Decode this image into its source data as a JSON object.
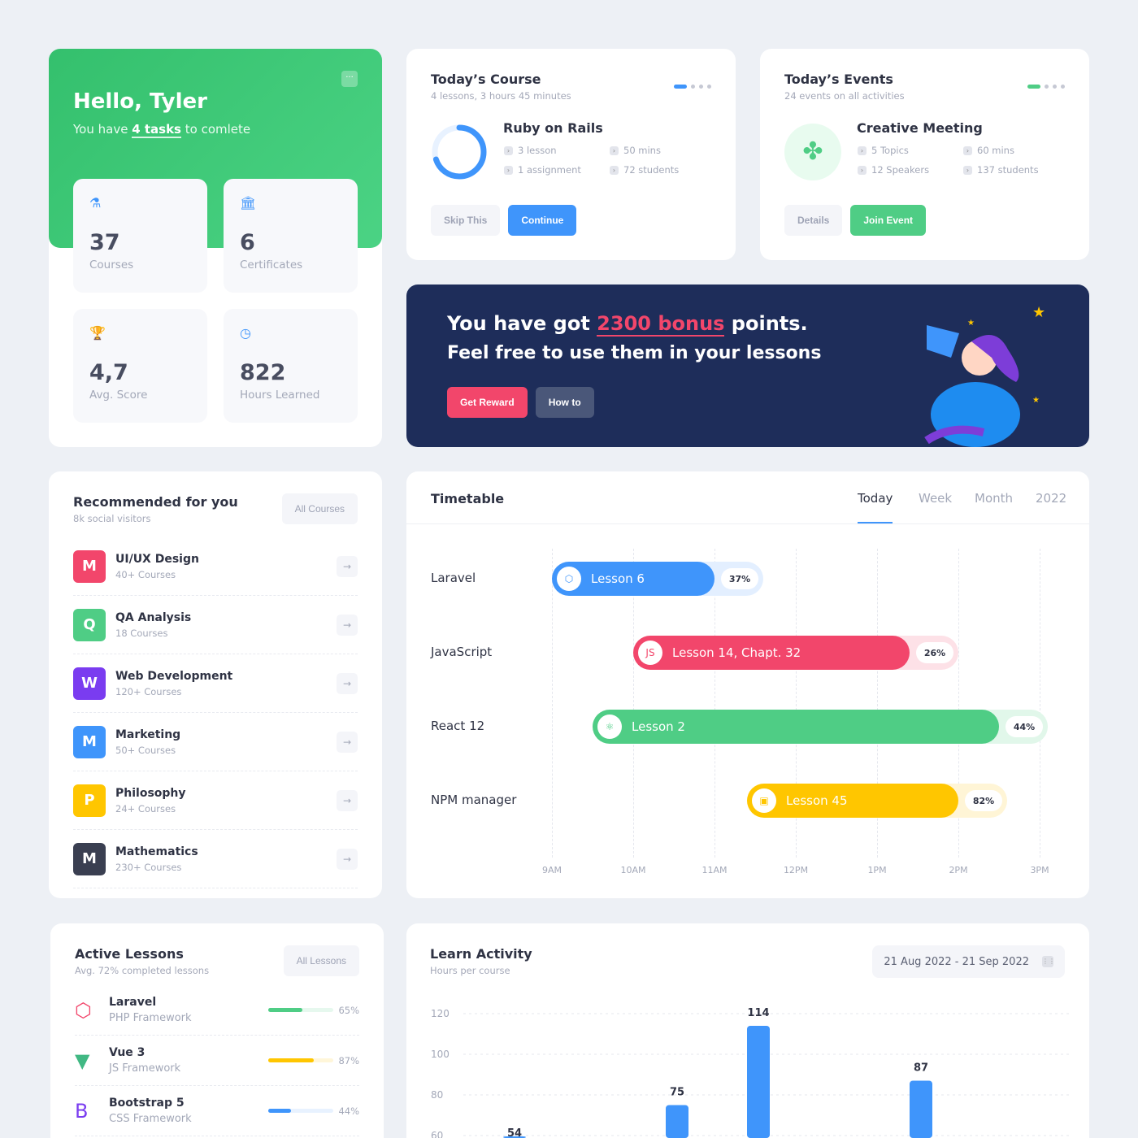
{
  "hello": {
    "title": "Hello, Tyler",
    "sub_pre": "You have ",
    "sub_bold": "4 tasks",
    "sub_post": " to comlete",
    "menu": "···"
  },
  "stats": [
    {
      "value": "37",
      "label": "Courses",
      "icon": "flask-icon"
    },
    {
      "value": "6",
      "label": "Certificates",
      "icon": "bank-icon"
    },
    {
      "value": "4,7",
      "label": "Avg. Score",
      "icon": "trophy-icon"
    },
    {
      "value": "822",
      "label": "Hours Learned",
      "icon": "clock-icon"
    }
  ],
  "course": {
    "title": "Today’s Course",
    "subtitle": "4 lessons, 3 hours 45 minutes",
    "name": "Ruby on Rails",
    "progress": 0.7,
    "meta": [
      "3 lesson",
      "50 mins",
      "1 assignment",
      "72 students"
    ],
    "skip": "Skip This",
    "continue": "Continue"
  },
  "events": {
    "title": "Today’s Events",
    "subtitle": "24 events on all activities",
    "name": "Creative Meeting",
    "meta": [
      "5 Topics",
      "60 mins",
      "12 Speakers",
      "137 students"
    ],
    "details": "Details",
    "join": "Join Event"
  },
  "bonus": {
    "pre": "You have got ",
    "highlight": "2300 bonus",
    "post": " points.",
    "line2": "Feel free to use them in your lessons",
    "reward": "Get Reward",
    "howto": "How to"
  },
  "recommended": {
    "title": "Recommended for you",
    "subtitle": "8k social visitors",
    "all": "All Courses",
    "items": [
      {
        "letter": "M",
        "name": "UI/UX Design",
        "count": "40+ Courses",
        "color": "#f2466b"
      },
      {
        "letter": "Q",
        "name": "QA Analysis",
        "count": "18 Courses",
        "color": "#4fcd85"
      },
      {
        "letter": "W",
        "name": "Web Development",
        "count": "120+ Courses",
        "color": "#7a3cf0"
      },
      {
        "letter": "M",
        "name": "Marketing",
        "count": "50+ Courses",
        "color": "#3f95fb"
      },
      {
        "letter": "P",
        "name": "Philosophy",
        "count": "24+ Courses",
        "color": "#ffc600"
      },
      {
        "letter": "M",
        "name": "Mathematics",
        "count": "230+ Courses",
        "color": "#3a3f51"
      }
    ]
  },
  "timetable": {
    "title": "Timetable",
    "tabs": [
      "Today",
      "Week",
      "Month",
      "2022"
    ],
    "active_tab": "Today",
    "hours": [
      "9AM",
      "10AM",
      "11AM",
      "12PM",
      "1PM",
      "2PM",
      "3PM"
    ],
    "rows": [
      {
        "label": "Laravel",
        "lesson": "Lesson 6",
        "percent": "37%",
        "start": 9.0,
        "end": 11.6,
        "color": "#3f95fb",
        "track": "#e3efff",
        "icon": "laravel-icon"
      },
      {
        "label": "JavaScript",
        "lesson": "Lesson 14, Chapt. 32",
        "percent": "26%",
        "start": 10.0,
        "end": 14.0,
        "color": "#f2466b",
        "track": "#fde1e7",
        "icon": "js-icon"
      },
      {
        "label": "React 12",
        "lesson": "Lesson 2",
        "percent": "44%",
        "start": 9.5,
        "end": 15.1,
        "color": "#4fcd85",
        "track": "#e1f7ea",
        "icon": "react-icon"
      },
      {
        "label": "NPM manager",
        "lesson": "Lesson 45",
        "percent": "82%",
        "start": 11.4,
        "end": 14.6,
        "color": "#ffc600",
        "track": "#fff5d6",
        "icon": "npm-icon"
      }
    ]
  },
  "active": {
    "title": "Active Lessons",
    "subtitle": "Avg. 72% completed lessons",
    "all": "All Lessons",
    "items": [
      {
        "name": "Laravel",
        "sub": "PHP Framework",
        "percent": "65%",
        "value": 65,
        "color": "#4fcd85",
        "track": "#e6f8ee",
        "icon": "laravel-icon"
      },
      {
        "name": "Vue 3",
        "sub": "JS Framework",
        "percent": "87%",
        "value": 87,
        "color": "#ffc600",
        "track": "#fff6d9",
        "icon": "vue-icon"
      },
      {
        "name": "Bootstrap 5",
        "sub": "CSS Framework",
        "percent": "44%",
        "value": 44,
        "color": "#3f95fb",
        "track": "#e8f2ff",
        "icon": "bootstrap-icon"
      }
    ]
  },
  "activity": {
    "title": "Learn Activity",
    "subtitle": "Hours per course",
    "range": "21 Aug 2022 - 21 Sep 2022"
  },
  "chart_data": {
    "type": "bar",
    "yticks": [
      120,
      100,
      80,
      60
    ],
    "values": [
      54,
      75,
      114,
      87
    ],
    "ylim": [
      60,
      120
    ],
    "grid": true,
    "color": "#3f95fb"
  }
}
